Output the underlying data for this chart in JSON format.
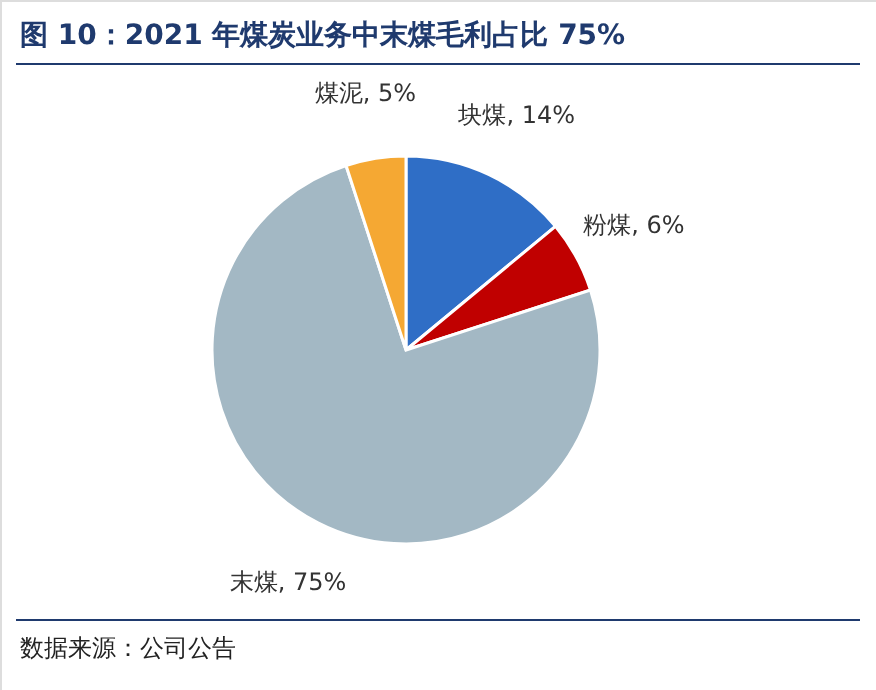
{
  "chart_data": {
    "type": "pie",
    "title": "图 10：2021 年煤炭业务中末煤毛利占比 75%",
    "categories": [
      "块煤",
      "粉煤",
      "末煤",
      "煤泥"
    ],
    "values": [
      14,
      6,
      75,
      5
    ],
    "value_labels": [
      "14%",
      "6%",
      "75%",
      "5%"
    ],
    "colors": [
      "#2f6ec6",
      "#c00000",
      "#a3b8c4",
      "#f5a833"
    ],
    "annotations": [
      "数据来源：公司公告"
    ]
  }
}
